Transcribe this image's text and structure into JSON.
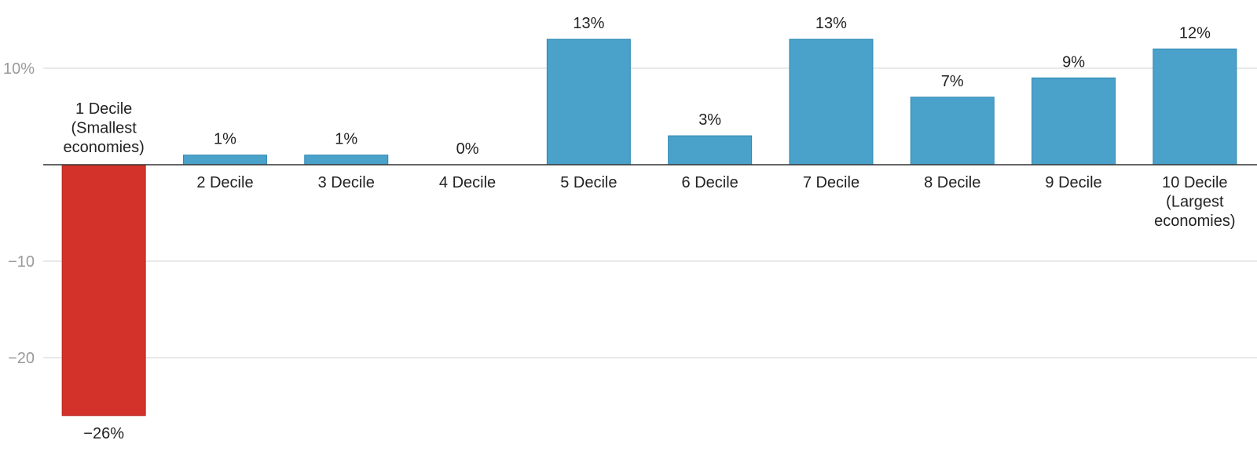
{
  "chart_data": {
    "type": "bar",
    "categories": [
      [
        "1 Decile",
        "(Smallest",
        "economies)"
      ],
      [
        "2 Decile"
      ],
      [
        "3 Decile"
      ],
      [
        "4 Decile"
      ],
      [
        "5 Decile"
      ],
      [
        "6 Decile"
      ],
      [
        "7 Decile"
      ],
      [
        "8 Decile"
      ],
      [
        "9 Decile"
      ],
      [
        "10 Decile",
        "(Largest",
        "economies)"
      ]
    ],
    "values": [
      -26,
      1,
      1,
      0,
      13,
      3,
      13,
      7,
      9,
      12
    ],
    "value_labels": [
      "−26%",
      "1%",
      "1%",
      "0%",
      "13%",
      "3%",
      "13%",
      "7%",
      "9%",
      "12%"
    ],
    "y_ticks": [
      {
        "value": 10,
        "label": "10%"
      },
      {
        "value": -10,
        "label": "−10"
      },
      {
        "value": -20,
        "label": "−20"
      }
    ],
    "ylim": [
      -28.5,
      16
    ],
    "grid": true,
    "colors": {
      "positive": "#4aa1c9",
      "positive_stroke": "#2f88b3",
      "negative": "#d3322b",
      "negative_stroke": "#b8241e",
      "grid": "#e2e2e2",
      "zero_line": "#333333"
    }
  }
}
